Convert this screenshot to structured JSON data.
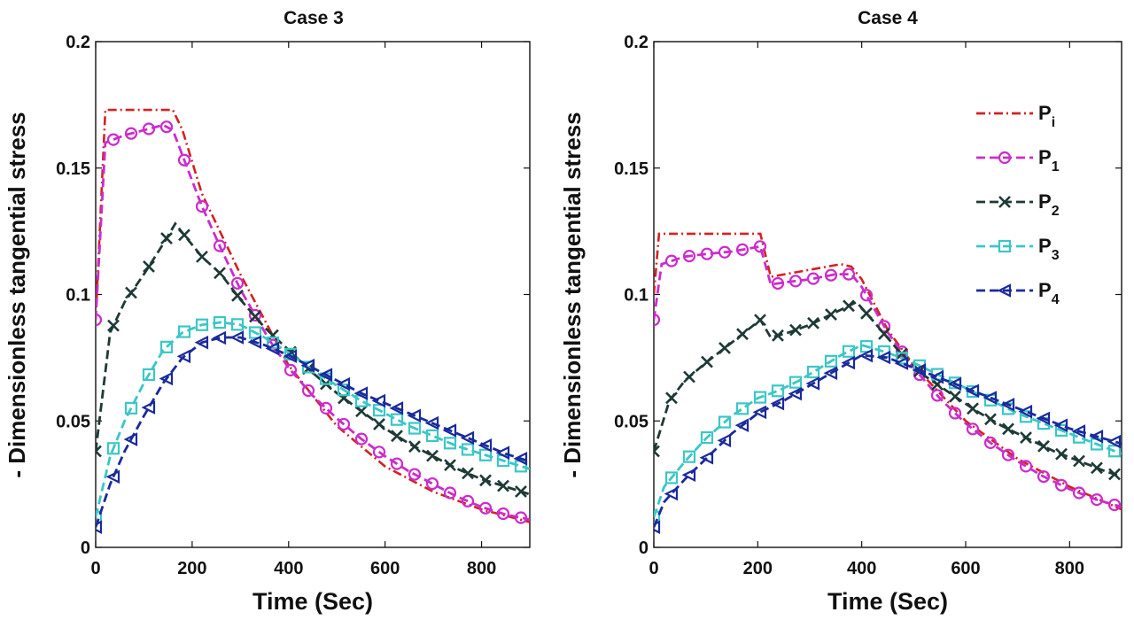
{
  "chart_data": [
    {
      "type": "line",
      "title": "Case 3",
      "xlabel": "Time (Sec)",
      "ylabel": "- Dimensionless tangential stress",
      "xlim": [
        0,
        900
      ],
      "ylim": [
        0,
        0.2
      ],
      "xticks": [
        0,
        200,
        400,
        600,
        800
      ],
      "xtick_labels": [
        "0",
        "200",
        "400",
        "600",
        "800"
      ],
      "yticks": [
        0,
        0.05,
        0.1,
        0.15,
        0.2
      ],
      "ytick_labels": [
        "0",
        "0.05",
        "0.1",
        "0.15",
        "0.2"
      ],
      "grid": false,
      "series": [
        {
          "name": "Pi",
          "label_main": "P",
          "label_sub": "i",
          "color": "#d62020",
          "dash": "10,4,2,4",
          "marker": "none",
          "x": [
            0,
            20,
            160,
            180,
            220,
            300,
            400,
            500,
            600,
            700,
            800,
            900
          ],
          "y": [
            0.09,
            0.173,
            0.173,
            0.165,
            0.14,
            0.108,
            0.072,
            0.048,
            0.032,
            0.022,
            0.015,
            0.01
          ]
        },
        {
          "name": "P1",
          "label_main": "P",
          "label_sub": "1",
          "color": "#cc2ccc",
          "dash": "10,5",
          "marker": "circle",
          "x": [
            0,
            20,
            60,
            100,
            140,
            160,
            180,
            220,
            260,
            300,
            360,
            400,
            450,
            500,
            550,
            600,
            650,
            700,
            750,
            800,
            850,
            900
          ],
          "y": [
            0.09,
            0.16,
            0.163,
            0.165,
            0.167,
            0.165,
            0.155,
            0.135,
            0.118,
            0.102,
            0.082,
            0.071,
            0.06,
            0.051,
            0.043,
            0.036,
            0.03,
            0.025,
            0.02,
            0.016,
            0.013,
            0.011
          ]
        },
        {
          "name": "P2",
          "label_main": "P",
          "label_sub": "2",
          "color": "#1e3a36",
          "dash": "10,5",
          "marker": "x",
          "x": [
            0,
            30,
            60,
            100,
            140,
            165,
            190,
            220,
            260,
            300,
            350,
            400,
            450,
            500,
            550,
            600,
            650,
            700,
            750,
            800,
            850,
            900
          ],
          "y": [
            0.038,
            0.085,
            0.097,
            0.108,
            0.12,
            0.128,
            0.122,
            0.115,
            0.108,
            0.098,
            0.087,
            0.078,
            0.069,
            0.061,
            0.054,
            0.047,
            0.041,
            0.036,
            0.031,
            0.027,
            0.024,
            0.021
          ]
        },
        {
          "name": "P3",
          "label_main": "P",
          "label_sub": "3",
          "color": "#3cc6c6",
          "dash": "10,5",
          "marker": "square",
          "x": [
            0,
            30,
            60,
            100,
            140,
            180,
            220,
            260,
            300,
            350,
            400,
            450,
            500,
            550,
            600,
            650,
            700,
            750,
            800,
            850,
            900
          ],
          "y": [
            0.012,
            0.036,
            0.05,
            0.065,
            0.078,
            0.085,
            0.088,
            0.089,
            0.088,
            0.083,
            0.077,
            0.07,
            0.064,
            0.058,
            0.053,
            0.048,
            0.044,
            0.04,
            0.037,
            0.034,
            0.031
          ]
        },
        {
          "name": "P4",
          "label_main": "P",
          "label_sub": "4",
          "color": "#1a2a9c",
          "dash": "10,5",
          "marker": "triangle-left",
          "x": [
            0,
            30,
            60,
            100,
            140,
            180,
            220,
            260,
            300,
            350,
            400,
            450,
            500,
            550,
            600,
            650,
            700,
            750,
            800,
            850,
            900
          ],
          "y": [
            0.008,
            0.025,
            0.038,
            0.052,
            0.065,
            0.075,
            0.081,
            0.083,
            0.083,
            0.08,
            0.076,
            0.071,
            0.066,
            0.061,
            0.057,
            0.053,
            0.049,
            0.045,
            0.041,
            0.037,
            0.034
          ]
        }
      ]
    },
    {
      "type": "line",
      "title": "Case 4",
      "xlabel": "Time (Sec)",
      "ylabel": "- Dimensionless tangential stress",
      "xlim": [
        0,
        900
      ],
      "ylim": [
        0,
        0.2
      ],
      "xticks": [
        0,
        200,
        400,
        600,
        800
      ],
      "xtick_labels": [
        "0",
        "200",
        "400",
        "600",
        "800"
      ],
      "yticks": [
        0,
        0.05,
        0.1,
        0.15,
        0.2
      ],
      "ytick_labels": [
        "0",
        "0.05",
        "0.1",
        "0.15",
        "0.2"
      ],
      "grid": false,
      "legend": "top-right",
      "series": [
        {
          "name": "Pi",
          "label_main": "P",
          "label_sub": "i",
          "color": "#d62020",
          "dash": "10,4,2,4",
          "marker": "none",
          "x": [
            0,
            10,
            205,
            225,
            360,
            380,
            400,
            450,
            500,
            600,
            700,
            800,
            900
          ],
          "y": [
            0.1,
            0.124,
            0.124,
            0.107,
            0.112,
            0.111,
            0.106,
            0.086,
            0.072,
            0.05,
            0.035,
            0.024,
            0.015
          ]
        },
        {
          "name": "P1",
          "label_main": "P",
          "label_sub": "1",
          "color": "#cc2ccc",
          "dash": "10,5",
          "marker": "circle",
          "x": [
            0,
            15,
            60,
            100,
            150,
            205,
            225,
            260,
            300,
            350,
            380,
            400,
            450,
            500,
            550,
            600,
            650,
            700,
            750,
            800,
            850,
            900
          ],
          "y": [
            0.09,
            0.112,
            0.115,
            0.116,
            0.117,
            0.119,
            0.104,
            0.105,
            0.106,
            0.108,
            0.108,
            0.103,
            0.085,
            0.071,
            0.059,
            0.049,
            0.041,
            0.034,
            0.028,
            0.023,
            0.019,
            0.016
          ]
        },
        {
          "name": "P2",
          "label_main": "P",
          "label_sub": "2",
          "color": "#1e3a36",
          "dash": "10,5",
          "marker": "x",
          "x": [
            0,
            30,
            60,
            100,
            150,
            205,
            225,
            260,
            300,
            350,
            390,
            420,
            470,
            520,
            570,
            620,
            670,
            720,
            770,
            820,
            870,
            900
          ],
          "y": [
            0.038,
            0.058,
            0.066,
            0.073,
            0.081,
            0.09,
            0.083,
            0.085,
            0.088,
            0.093,
            0.097,
            0.09,
            0.078,
            0.068,
            0.061,
            0.054,
            0.048,
            0.043,
            0.038,
            0.034,
            0.03,
            0.028
          ]
        },
        {
          "name": "P3",
          "label_main": "P",
          "label_sub": "3",
          "color": "#3cc6c6",
          "dash": "10,5",
          "marker": "square",
          "x": [
            0,
            20,
            60,
            100,
            150,
            200,
            240,
            280,
            320,
            360,
            400,
            450,
            500,
            550,
            600,
            650,
            700,
            750,
            800,
            850,
            900
          ],
          "y": [
            0.012,
            0.024,
            0.034,
            0.043,
            0.052,
            0.059,
            0.062,
            0.066,
            0.071,
            0.076,
            0.08,
            0.077,
            0.073,
            0.068,
            0.063,
            0.058,
            0.053,
            0.049,
            0.045,
            0.041,
            0.037
          ]
        },
        {
          "name": "P4",
          "label_main": "P",
          "label_sub": "4",
          "color": "#1a2a9c",
          "dash": "10,5",
          "marker": "triangle-left",
          "x": [
            0,
            20,
            60,
            100,
            150,
            200,
            250,
            300,
            350,
            400,
            450,
            500,
            550,
            600,
            650,
            700,
            750,
            800,
            850,
            900
          ],
          "y": [
            0.008,
            0.018,
            0.027,
            0.035,
            0.045,
            0.053,
            0.058,
            0.064,
            0.07,
            0.076,
            0.075,
            0.071,
            0.067,
            0.063,
            0.059,
            0.055,
            0.051,
            0.047,
            0.044,
            0.041
          ]
        }
      ]
    }
  ]
}
